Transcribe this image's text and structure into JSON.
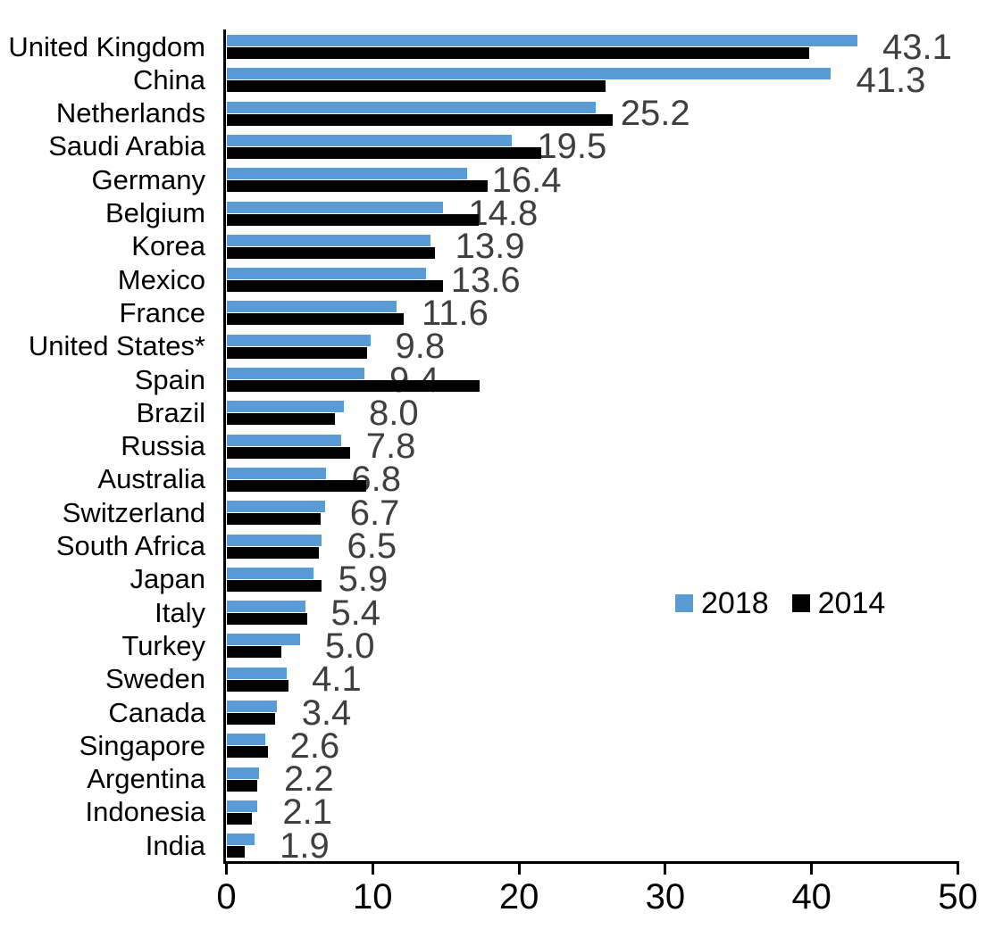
{
  "chart_data": {
    "type": "bar",
    "orientation": "horizontal-grouped",
    "title": "",
    "xlabel": "",
    "ylabel": "",
    "xlim": [
      0,
      50
    ],
    "x_ticks": [
      0,
      10,
      20,
      30,
      40,
      50
    ],
    "grid": false,
    "categories": [
      "United Kingdom",
      "China",
      "Netherlands",
      "Saudi Arabia",
      "Germany",
      "Belgium",
      "Korea",
      "Mexico",
      "France",
      "United States*",
      "Spain",
      "Brazil",
      "Russia",
      "Australia",
      "Switzerland",
      "South Africa",
      "Japan",
      "Italy",
      "Turkey",
      "Sweden",
      "Canada",
      "Singapore",
      "Argentina",
      "Indonesia",
      "India"
    ],
    "series": [
      {
        "name": "2018",
        "color": "#5B9BD5",
        "values": [
          43.1,
          41.3,
          25.2,
          19.5,
          16.4,
          14.8,
          13.9,
          13.6,
          11.6,
          9.8,
          9.4,
          8.0,
          7.8,
          6.8,
          6.7,
          6.5,
          5.9,
          5.4,
          5.0,
          4.1,
          3.4,
          2.6,
          2.2,
          2.1,
          1.9
        ]
      },
      {
        "name": "2014",
        "color": "#000000",
        "values": [
          39.8,
          25.9,
          26.4,
          21.5,
          17.8,
          17.2,
          14.2,
          14.8,
          12.1,
          9.6,
          17.3,
          7.4,
          8.4,
          9.5,
          6.4,
          6.3,
          6.5,
          5.5,
          3.7,
          4.2,
          3.3,
          2.8,
          2.1,
          1.7,
          1.2
        ]
      }
    ],
    "data_labels": [
      "43.1",
      "41.3",
      "25.2",
      "19.5",
      "16.4",
      "14.8",
      "13.9",
      "13.6",
      "11.6",
      "9.8",
      "9.4",
      "8.0",
      "7.8",
      "6.8",
      "6.7",
      "6.5",
      "5.9",
      "5.4",
      "5.0",
      "4.1",
      "3.4",
      "2.6",
      "2.2",
      "2.1",
      "1.9"
    ],
    "data_label_series": "2018",
    "legend": {
      "position": "middle-right",
      "entries": [
        {
          "label": "2018",
          "color": "#5B9BD5"
        },
        {
          "label": "2014",
          "color": "#000000"
        }
      ]
    }
  },
  "colors": {
    "bar_2018": "#5B9BD5",
    "bar_2014": "#000000",
    "value_label": "#3F3F3F",
    "axis": "#000000",
    "background": "#FFFFFF"
  }
}
